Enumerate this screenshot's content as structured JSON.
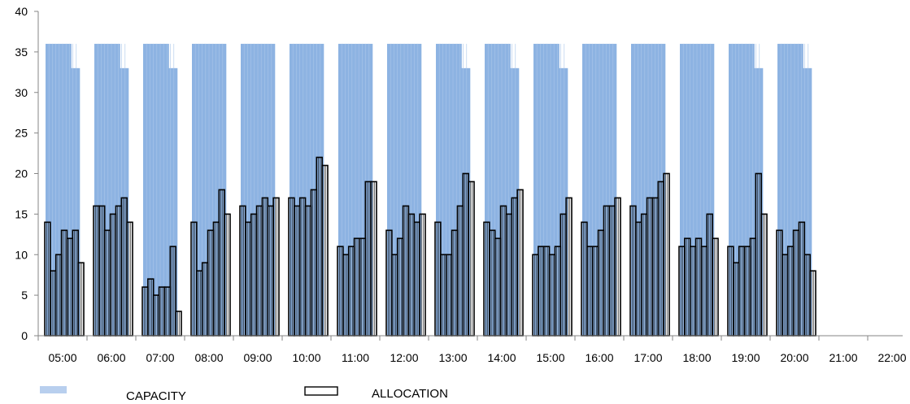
{
  "chart_data": {
    "type": "bar",
    "categories": [
      "05:00",
      "06:00",
      "07:00",
      "08:00",
      "09:00",
      "10:00",
      "11:00",
      "12:00",
      "13:00",
      "14:00",
      "15:00",
      "16:00",
      "17:00",
      "18:00",
      "19:00",
      "20:00",
      "21:00",
      "22:00"
    ],
    "ylim": [
      0,
      40
    ],
    "yticks": [
      0,
      5,
      10,
      15,
      20,
      25,
      30,
      35,
      40
    ],
    "grid": false,
    "legend_position": "bottom-left",
    "colors": {
      "capacity": "#8db3e2",
      "allocation_fill": "#ffffff",
      "allocation_edge": "#000000"
    },
    "series": [
      {
        "name": "CAPACITY",
        "style": "filled",
        "values": [
          [
            36,
            36,
            36,
            36,
            36,
            36,
            33,
            33
          ],
          [
            36,
            36,
            36,
            36,
            36,
            36,
            33,
            33
          ],
          [
            36,
            36,
            36,
            36,
            36,
            36,
            33,
            33
          ],
          [
            36,
            36,
            36,
            36,
            36,
            36,
            36,
            36
          ],
          [
            36,
            36,
            36,
            36,
            36,
            36,
            36,
            36
          ],
          [
            36,
            36,
            36,
            36,
            36,
            36,
            36,
            36
          ],
          [
            36,
            36,
            36,
            36,
            36,
            36,
            36,
            36
          ],
          [
            36,
            36,
            36,
            36,
            36,
            36,
            36,
            36
          ],
          [
            36,
            36,
            36,
            36,
            36,
            36,
            33,
            33
          ],
          [
            36,
            36,
            36,
            36,
            36,
            36,
            33,
            33
          ],
          [
            36,
            36,
            36,
            36,
            36,
            36,
            33,
            33
          ],
          [
            36,
            36,
            36,
            36,
            36,
            36,
            36,
            36
          ],
          [
            36,
            36,
            36,
            36,
            36,
            36,
            36,
            36
          ],
          [
            36,
            36,
            36,
            36,
            36,
            36,
            36,
            36
          ],
          [
            36,
            36,
            36,
            36,
            36,
            36,
            33,
            33
          ],
          [
            36,
            36,
            36,
            36,
            36,
            36,
            33,
            33
          ],
          [],
          []
        ]
      },
      {
        "name": "ALLOCATION",
        "style": "outline",
        "values": [
          [
            14,
            8,
            10,
            13,
            12,
            13,
            9
          ],
          [
            16,
            16,
            13,
            15,
            16,
            17,
            14
          ],
          [
            6,
            7,
            5,
            6,
            6,
            11,
            3
          ],
          [
            14,
            8,
            9,
            13,
            14,
            18,
            15
          ],
          [
            16,
            14,
            15,
            16,
            17,
            16,
            17
          ],
          [
            17,
            16,
            17,
            16,
            18,
            22,
            21
          ],
          [
            11,
            10,
            11,
            12,
            12,
            19,
            19
          ],
          [
            13,
            10,
            12,
            16,
            15,
            14,
            15
          ],
          [
            14,
            10,
            10,
            13,
            16,
            20,
            19
          ],
          [
            14,
            13,
            12,
            16,
            15,
            17,
            18
          ],
          [
            10,
            11,
            11,
            10,
            11,
            15,
            17
          ],
          [
            14,
            11,
            11,
            13,
            16,
            16,
            17
          ],
          [
            16,
            14,
            15,
            17,
            17,
            19,
            20
          ],
          [
            11,
            12,
            11,
            12,
            11,
            15,
            12
          ],
          [
            11,
            9,
            11,
            11,
            12,
            20,
            15
          ],
          [
            13,
            10,
            11,
            13,
            14,
            10,
            8
          ],
          [],
          []
        ]
      }
    ]
  }
}
